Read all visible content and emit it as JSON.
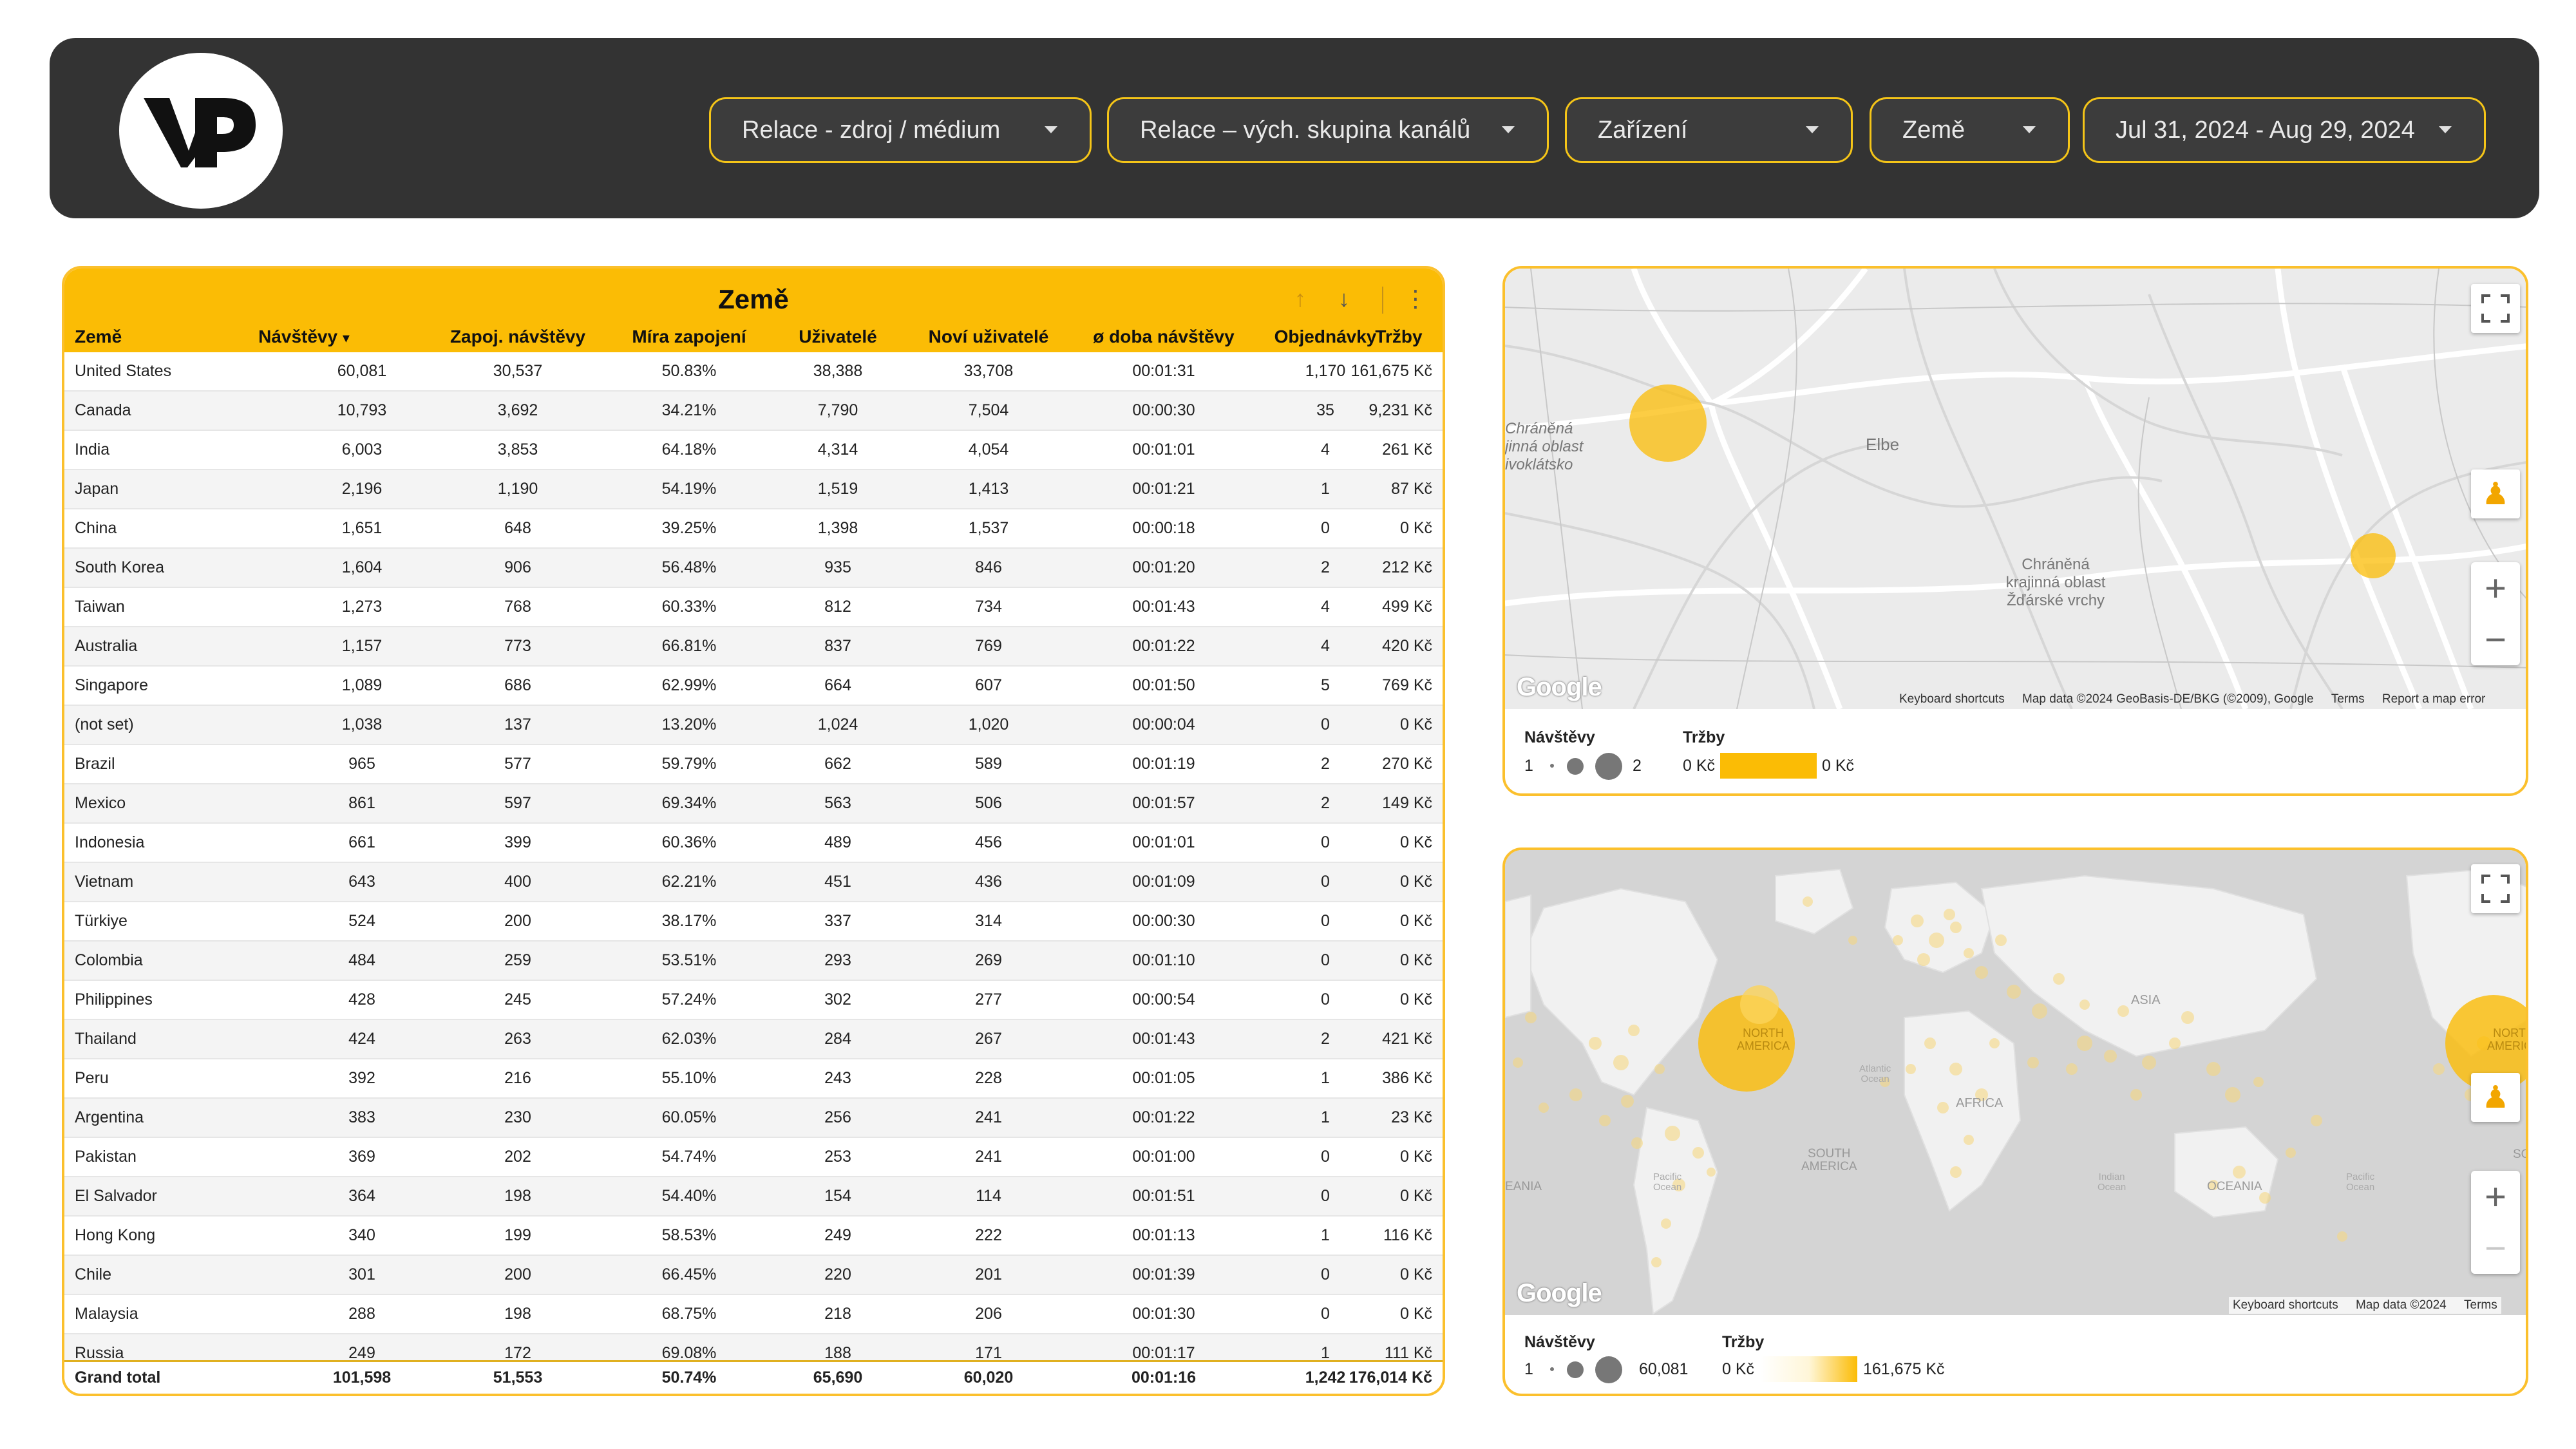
{
  "filters": [
    {
      "label": "Relace - zdroj / médium"
    },
    {
      "label": "Relace – vých. skupina kanálů"
    },
    {
      "label": "Zařízení"
    },
    {
      "label": "Země"
    },
    {
      "label": "Jul 31, 2024 - Aug 29, 2024"
    }
  ],
  "colors": {
    "accent": "#fbbc05",
    "header_bg": "#333333"
  },
  "table": {
    "title": "Země",
    "columns": [
      "Země",
      "Návštěvy",
      "Zapoj. návštěvy",
      "Míra zapojení",
      "Uživatelé",
      "Noví uživatelé",
      "ø doba návštěvy",
      "Objednávky",
      "Tržby"
    ],
    "sort_indicator": "▾",
    "rows": [
      [
        "United States",
        "60,081",
        "30,537",
        "50.83%",
        "38,388",
        "33,708",
        "00:01:31",
        "1,170",
        "161,675 Kč"
      ],
      [
        "Canada",
        "10,793",
        "3,692",
        "34.21%",
        "7,790",
        "7,504",
        "00:00:30",
        "35",
        "9,231 Kč"
      ],
      [
        "India",
        "6,003",
        "3,853",
        "64.18%",
        "4,314",
        "4,054",
        "00:01:01",
        "4",
        "261 Kč"
      ],
      [
        "Japan",
        "2,196",
        "1,190",
        "54.19%",
        "1,519",
        "1,413",
        "00:01:21",
        "1",
        "87 Kč"
      ],
      [
        "China",
        "1,651",
        "648",
        "39.25%",
        "1,398",
        "1,537",
        "00:00:18",
        "0",
        "0 Kč"
      ],
      [
        "South Korea",
        "1,604",
        "906",
        "56.48%",
        "935",
        "846",
        "00:01:20",
        "2",
        "212 Kč"
      ],
      [
        "Taiwan",
        "1,273",
        "768",
        "60.33%",
        "812",
        "734",
        "00:01:43",
        "4",
        "499 Kč"
      ],
      [
        "Australia",
        "1,157",
        "773",
        "66.81%",
        "837",
        "769",
        "00:01:22",
        "4",
        "420 Kč"
      ],
      [
        "Singapore",
        "1,089",
        "686",
        "62.99%",
        "664",
        "607",
        "00:01:50",
        "5",
        "769 Kč"
      ],
      [
        "(not set)",
        "1,038",
        "137",
        "13.20%",
        "1,024",
        "1,020",
        "00:00:04",
        "0",
        "0 Kč"
      ],
      [
        "Brazil",
        "965",
        "577",
        "59.79%",
        "662",
        "589",
        "00:01:19",
        "2",
        "270 Kč"
      ],
      [
        "Mexico",
        "861",
        "597",
        "69.34%",
        "563",
        "506",
        "00:01:57",
        "2",
        "149 Kč"
      ],
      [
        "Indonesia",
        "661",
        "399",
        "60.36%",
        "489",
        "456",
        "00:01:01",
        "0",
        "0 Kč"
      ],
      [
        "Vietnam",
        "643",
        "400",
        "62.21%",
        "451",
        "436",
        "00:01:09",
        "0",
        "0 Kč"
      ],
      [
        "Türkiye",
        "524",
        "200",
        "38.17%",
        "337",
        "314",
        "00:00:30",
        "0",
        "0 Kč"
      ],
      [
        "Colombia",
        "484",
        "259",
        "53.51%",
        "293",
        "269",
        "00:01:10",
        "0",
        "0 Kč"
      ],
      [
        "Philippines",
        "428",
        "245",
        "57.24%",
        "302",
        "277",
        "00:00:54",
        "0",
        "0 Kč"
      ],
      [
        "Thailand",
        "424",
        "263",
        "62.03%",
        "284",
        "267",
        "00:01:43",
        "2",
        "421 Kč"
      ],
      [
        "Peru",
        "392",
        "216",
        "55.10%",
        "243",
        "228",
        "00:01:05",
        "1",
        "386 Kč"
      ],
      [
        "Argentina",
        "383",
        "230",
        "60.05%",
        "256",
        "241",
        "00:01:22",
        "1",
        "23 Kč"
      ],
      [
        "Pakistan",
        "369",
        "202",
        "54.74%",
        "253",
        "241",
        "00:01:00",
        "0",
        "0 Kč"
      ],
      [
        "El Salvador",
        "364",
        "198",
        "54.40%",
        "154",
        "114",
        "00:01:51",
        "0",
        "0 Kč"
      ],
      [
        "Hong Kong",
        "340",
        "199",
        "58.53%",
        "249",
        "222",
        "00:01:13",
        "1",
        "116 Kč"
      ],
      [
        "Chile",
        "301",
        "200",
        "66.45%",
        "220",
        "201",
        "00:01:39",
        "0",
        "0 Kč"
      ],
      [
        "Malaysia",
        "288",
        "198",
        "68.75%",
        "218",
        "206",
        "00:01:30",
        "0",
        "0 Kč"
      ],
      [
        "Russia",
        "249",
        "172",
        "69.08%",
        "188",
        "171",
        "00:01:17",
        "1",
        "111 Kč"
      ]
    ],
    "total": [
      "Grand total",
      "101,598",
      "51,553",
      "50.74%",
      "65,690",
      "60,020",
      "00:01:16",
      "1,242",
      "176,014 Kč"
    ]
  },
  "map1": {
    "labels": [
      "Chráněná krajinná oblast Křivoklátsko",
      "Elbe",
      "Chráněná",
      "krajinná oblast",
      "Žďárské vrchy"
    ],
    "label_left": [
      "Chráněná",
      "jinná oblast",
      "ivoklátsko"
    ],
    "google": "Google",
    "attribution": [
      "Keyboard shortcuts",
      "Map data ©2024 GeoBasis-DE/BKG (©2009), Google",
      "Terms",
      "Report a map error"
    ],
    "legend": {
      "size_title": "Návštěvy",
      "size_min": "1",
      "size_max": "2",
      "color_title": "Tržby",
      "color_min": "0 Kč",
      "color_max": "0 Kč"
    }
  },
  "map2": {
    "labels": [
      "NORTH",
      "AMERICA",
      "ASIA",
      "AFRICA",
      "SOUTH",
      "AMERICA",
      "OCEANIA",
      "EANIA",
      "Atlantic",
      "Ocean",
      "Pacific",
      "Ocean",
      "Indian",
      "Ocean",
      "Pacific",
      "Ocean",
      "NORTH",
      "AMERICA",
      "SO"
    ],
    "google": "Google",
    "attribution": [
      "Keyboard shortcuts",
      "Map data ©2024",
      "Terms"
    ],
    "legend": {
      "size_title": "Návštěvy",
      "size_min": "1",
      "size_max": "60,081",
      "color_title": "Tržby",
      "color_min": "0 Kč",
      "color_max": "161,675 Kč"
    }
  }
}
